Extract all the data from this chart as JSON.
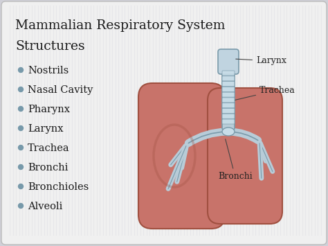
{
  "title_line1": "Mammalian Respiratory System",
  "title_line2": "Structures",
  "bullet_items": [
    "Nostrils",
    "Nasal Cavity",
    "Pharynx",
    "Larynx",
    "Trachea",
    "Bronchi",
    "Bronchioles",
    "Alveoli"
  ],
  "bg_color": "#d0d0d8",
  "card_color": "#f0f0f0",
  "stripe_color": "#e2e2e6",
  "title_color": "#1a1a1a",
  "bullet_color": "#1a1a1a",
  "bullet_dot_color": "#7799aa",
  "lung_color": "#c8736a",
  "lung_inner_color": "#d98880",
  "lung_edge_color": "#a05040",
  "trachea_color": "#b8ccd8",
  "trachea_edge_color": "#7a9aaa",
  "trachea_ring_color": "#c8dde8",
  "larynx_color": "#c0d4e0",
  "bronchi_color": "#b8ccd8",
  "label_color": "#222222",
  "line_color": "#444444",
  "diagram_labels": [
    "Larynx",
    "Trachea",
    "Bronchi"
  ],
  "title_fontsize": 13.5,
  "bullet_fontsize": 10.5
}
